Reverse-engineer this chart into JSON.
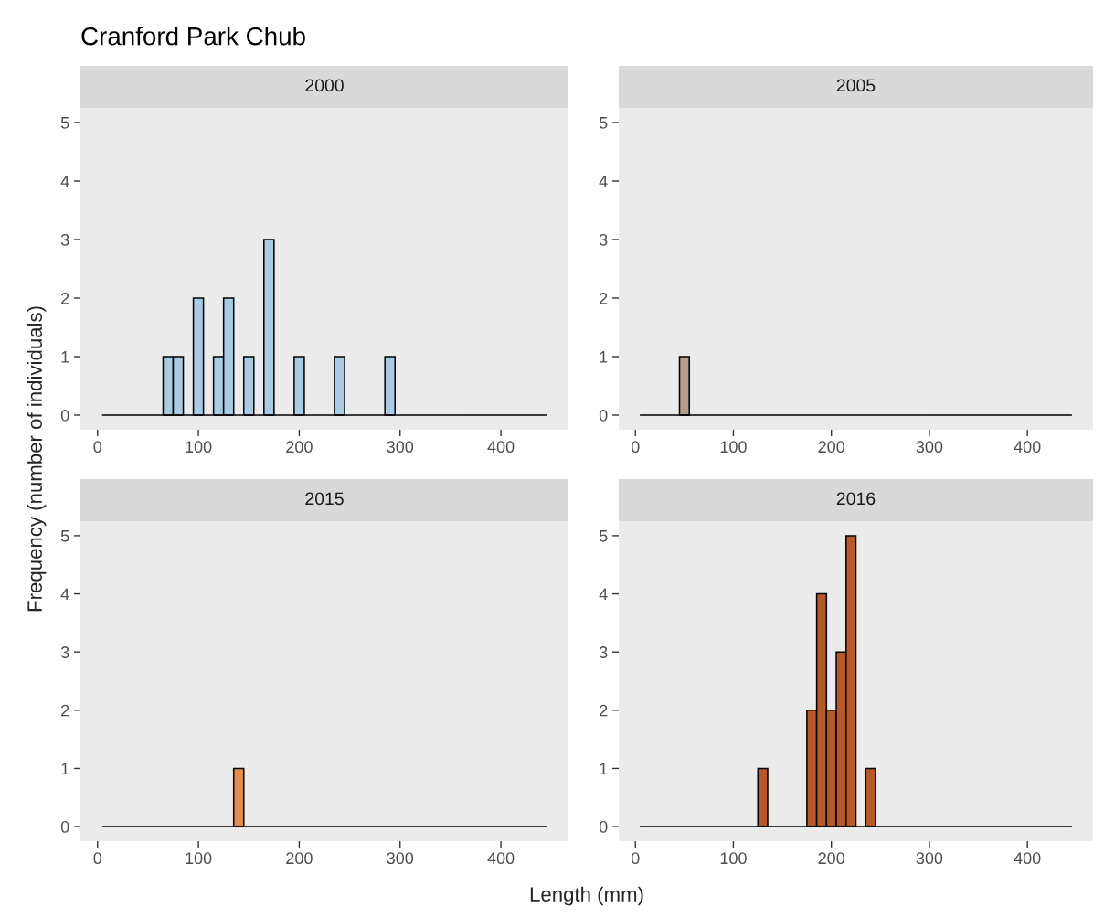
{
  "chart_data": [
    {
      "type": "histogram",
      "title": "2000",
      "annotations": [
        "Cranford Park Chub"
      ],
      "ylabel": "Frequency (number of individuals)",
      "color": "#a9cce3",
      "bins": [
        5,
        15,
        25,
        35,
        45,
        55,
        65,
        75,
        85,
        95,
        105,
        115,
        125,
        135,
        145,
        155,
        165,
        175,
        185,
        195,
        205,
        215,
        225,
        235,
        245,
        255,
        265,
        275,
        285,
        295,
        305,
        315,
        325,
        335,
        345,
        355,
        365,
        375,
        385,
        395,
        405,
        415,
        425,
        435,
        445
      ],
      "values": [
        0,
        0,
        0,
        0,
        0,
        0,
        1,
        1,
        0,
        2,
        0,
        1,
        2,
        0,
        1,
        0,
        3,
        0,
        0,
        1,
        0,
        0,
        0,
        1,
        0,
        0,
        0,
        0,
        1,
        0,
        0,
        0,
        0,
        0,
        0,
        0,
        0,
        0,
        0,
        0,
        0,
        0,
        0,
        0
      ],
      "xlim": [
        -17,
        467
      ],
      "xticks": [
        0,
        100,
        200,
        300,
        400
      ],
      "ylim": [
        -0.25,
        5.25
      ],
      "yticks": [
        0,
        1,
        2,
        3,
        4,
        5
      ]
    },
    {
      "type": "histogram",
      "title": "2005",
      "color": "#b39f8c",
      "bins": [
        5,
        15,
        25,
        35,
        45,
        55,
        65,
        75,
        85,
        95,
        105,
        115,
        125,
        135,
        145,
        155,
        165,
        175,
        185,
        195,
        205,
        215,
        225,
        235,
        245,
        255,
        265,
        275,
        285,
        295,
        305,
        315,
        325,
        335,
        345,
        355,
        365,
        375,
        385,
        395,
        405,
        415,
        425,
        435,
        445
      ],
      "values": [
        0,
        0,
        0,
        0,
        1,
        0,
        0,
        0,
        0,
        0,
        0,
        0,
        0,
        0,
        0,
        0,
        0,
        0,
        0,
        0,
        0,
        0,
        0,
        0,
        0,
        0,
        0,
        0,
        0,
        0,
        0,
        0,
        0,
        0,
        0,
        0,
        0,
        0,
        0,
        0,
        0,
        0,
        0,
        0
      ],
      "xlim": [
        -17,
        467
      ],
      "xticks": [
        0,
        100,
        200,
        300,
        400
      ],
      "ylim": [
        -0.25,
        5.25
      ],
      "yticks": [
        0,
        1,
        2,
        3,
        4,
        5
      ]
    },
    {
      "type": "histogram",
      "title": "2015",
      "color": "#e38d4c",
      "bins": [
        5,
        15,
        25,
        35,
        45,
        55,
        65,
        75,
        85,
        95,
        105,
        115,
        125,
        135,
        145,
        155,
        165,
        175,
        185,
        195,
        205,
        215,
        225,
        235,
        245,
        255,
        265,
        275,
        285,
        295,
        305,
        315,
        325,
        335,
        345,
        355,
        365,
        375,
        385,
        395,
        405,
        415,
        425,
        435,
        445
      ],
      "values": [
        0,
        0,
        0,
        0,
        0,
        0,
        0,
        0,
        0,
        0,
        0,
        0,
        0,
        1,
        0,
        0,
        0,
        0,
        0,
        0,
        0,
        0,
        0,
        0,
        0,
        0,
        0,
        0,
        0,
        0,
        0,
        0,
        0,
        0,
        0,
        0,
        0,
        0,
        0,
        0,
        0,
        0,
        0,
        0
      ],
      "xlim": [
        -17,
        467
      ],
      "xticks": [
        0,
        100,
        200,
        300,
        400
      ],
      "ylim": [
        -0.25,
        5.25
      ],
      "yticks": [
        0,
        1,
        2,
        3,
        4,
        5
      ]
    },
    {
      "type": "histogram",
      "title": "2016",
      "xlabel": "Length (mm)",
      "color": "#b5592b",
      "bins": [
        5,
        15,
        25,
        35,
        45,
        55,
        65,
        75,
        85,
        95,
        105,
        115,
        125,
        135,
        145,
        155,
        165,
        175,
        185,
        195,
        205,
        215,
        225,
        235,
        245,
        255,
        265,
        275,
        285,
        295,
        305,
        315,
        325,
        335,
        345,
        355,
        365,
        375,
        385,
        395,
        405,
        415,
        425,
        435,
        445
      ],
      "values": [
        0,
        0,
        0,
        0,
        0,
        0,
        0,
        0,
        0,
        0,
        0,
        0,
        1,
        0,
        0,
        0,
        0,
        2,
        4,
        2,
        3,
        5,
        0,
        1,
        0,
        0,
        0,
        0,
        0,
        0,
        0,
        0,
        0,
        0,
        0,
        0,
        0,
        0,
        0,
        0,
        0,
        0,
        0,
        0
      ],
      "xlim": [
        -17,
        467
      ],
      "xticks": [
        0,
        100,
        200,
        300,
        400
      ],
      "ylim": [
        -0.25,
        5.25
      ],
      "yticks": [
        0,
        1,
        2,
        3,
        4,
        5
      ]
    }
  ]
}
